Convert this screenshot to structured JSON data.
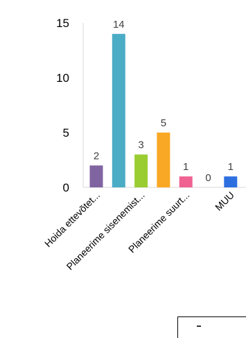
{
  "chart_data": {
    "type": "bar",
    "categories": [
      "Hoida ettevõtet...",
      "Planeerime sisenemist...",
      "Planeerime suurt...",
      "MUU"
    ],
    "series_values": [
      2,
      14,
      3,
      5,
      1,
      0,
      1
    ],
    "bar_colors": [
      "#8064A2",
      "#4BACC6",
      "#9ACD32",
      "#F9A825",
      "#F06292",
      "#4A90E2",
      "#2E6FE0"
    ],
    "xlabel_indices": [
      0,
      2,
      4,
      6
    ],
    "ylim": [
      0,
      15
    ],
    "yticks": [
      0,
      5,
      10,
      15
    ],
    "grid": false,
    "title": "",
    "xlabel": "",
    "ylabel": ""
  }
}
